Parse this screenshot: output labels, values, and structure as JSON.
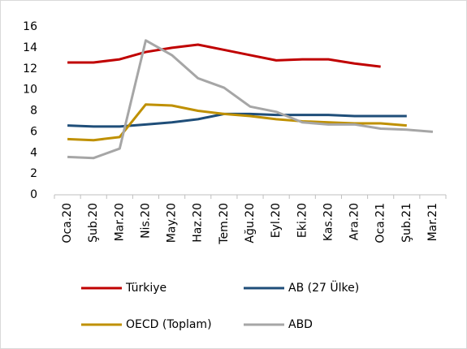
{
  "chart_data": {
    "type": "line",
    "categories": [
      "Oca.20",
      "Şub.20",
      "Mar.20",
      "Nis.20",
      "May.20",
      "Haz.20",
      "Tem.20",
      "Ağu.20",
      "Eyl.20",
      "Eki.20",
      "Kas.20",
      "Ara.20",
      "Oca.21",
      "Şub.21",
      "Mar.21"
    ],
    "series": [
      {
        "name": "Türkiye",
        "color": "#c00000",
        "values": [
          12.6,
          12.6,
          12.9,
          13.6,
          14.0,
          14.3,
          13.8,
          13.3,
          12.8,
          12.9,
          12.9,
          12.5,
          12.2,
          null,
          null
        ]
      },
      {
        "name": "AB (27 Ülke)",
        "color": "#1f4e79",
        "values": [
          6.6,
          6.5,
          6.5,
          6.7,
          6.9,
          7.2,
          7.7,
          7.7,
          7.6,
          7.6,
          7.6,
          7.5,
          7.5,
          7.5,
          null
        ]
      },
      {
        "name": "OECD (Toplam)",
        "color": "#bf9000",
        "values": [
          5.3,
          5.2,
          5.5,
          8.6,
          8.5,
          8.0,
          7.7,
          7.5,
          7.2,
          7.0,
          6.9,
          6.8,
          6.8,
          6.6,
          null
        ]
      },
      {
        "name": "ABD",
        "color": "#a6a6a6",
        "values": [
          3.6,
          3.5,
          4.4,
          14.7,
          13.3,
          11.1,
          10.2,
          8.4,
          7.9,
          6.9,
          6.7,
          6.7,
          6.3,
          6.2,
          6.0
        ]
      }
    ],
    "ylim": [
      0,
      16
    ],
    "yticks": [
      0,
      2,
      4,
      6,
      8,
      10,
      12,
      14,
      16
    ],
    "grid": false
  }
}
